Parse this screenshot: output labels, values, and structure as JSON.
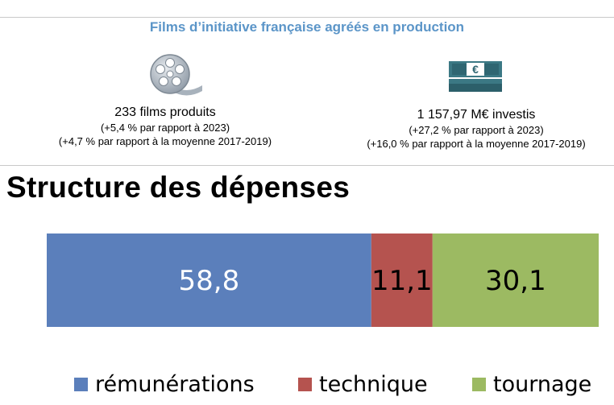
{
  "header": {
    "title": "Films d’initiative française agréés en production"
  },
  "kpis": [
    {
      "icon": "film-reel-icon",
      "main": "233 films produits",
      "sub1": "(+5,4 % par rapport à 2023)",
      "sub2": "(+4,7 % par rapport à la moyenne 2017-2019)"
    },
    {
      "icon": "euro-banknotes-icon",
      "main": "1 157,97 M€ investis",
      "sub1": "(+27,2 % par rapport à 2023)",
      "sub2": "(+16,0 % par rapport à la moyenne 2017-2019)"
    }
  ],
  "icons": {
    "banknote_symbol": "€"
  },
  "section": {
    "title": "Structure des dépenses"
  },
  "colors": {
    "header": "#5b95c8",
    "rémunérations": "#5b7fbb",
    "technique": "#b5534f",
    "tournage": "#9cba62"
  },
  "chart_data": {
    "type": "bar",
    "orientation": "horizontal",
    "stacked": true,
    "categories": [
      ""
    ],
    "series": [
      {
        "name": "rémunérations",
        "values": [
          58.8
        ],
        "label": "58,8",
        "color": "#5b7fbb"
      },
      {
        "name": "technique",
        "values": [
          11.1
        ],
        "label": "11,1",
        "color": "#b5534f"
      },
      {
        "name": "tournage",
        "values": [
          30.1
        ],
        "label": "30,1",
        "color": "#9cba62"
      }
    ],
    "legend_position": "bottom",
    "grid": false
  }
}
